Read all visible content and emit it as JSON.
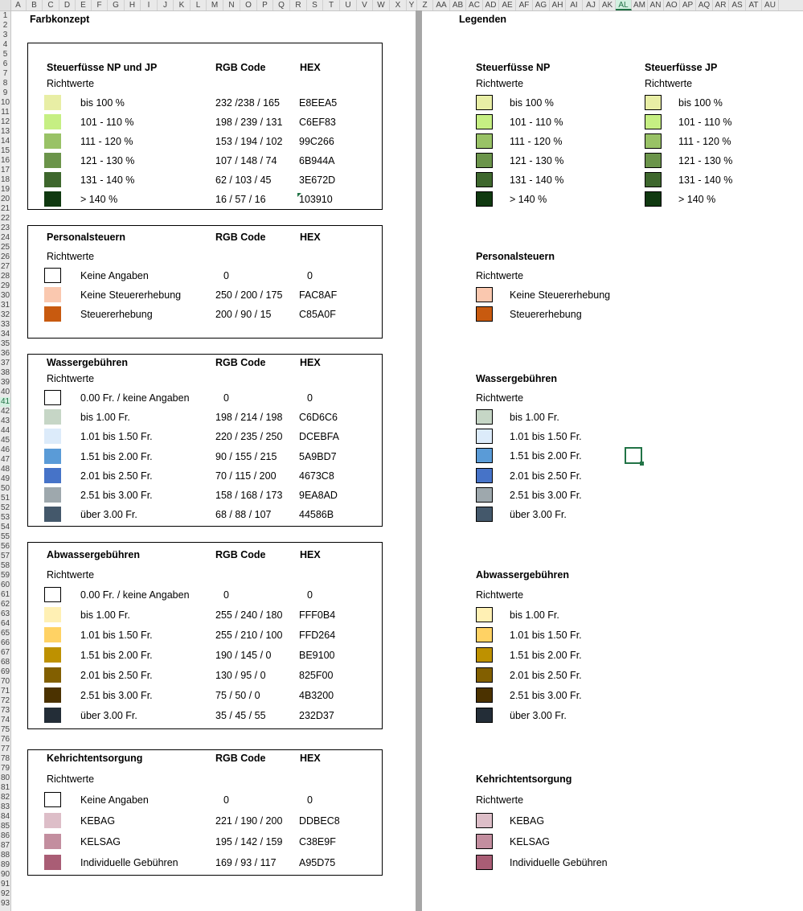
{
  "columns": [
    "A",
    "B",
    "C",
    "D",
    "E",
    "F",
    "G",
    "H",
    "I",
    "J",
    "K",
    "L",
    "M",
    "N",
    "O",
    "P",
    "Q",
    "R",
    "S",
    "T",
    "U",
    "V",
    "W",
    "X",
    "Y",
    "Z",
    "AA",
    "AB",
    "AC",
    "AD",
    "AE",
    "AF",
    "AG",
    "AH",
    "AI",
    "AJ",
    "AK",
    "AL",
    "AM",
    "AN",
    "AO",
    "AP",
    "AQ",
    "AR",
    "AS",
    "AT",
    "AU"
  ],
  "selected_column": "AL",
  "rows": [
    "1",
    "2",
    "3",
    "4",
    "5",
    "6",
    "7",
    "8",
    "9",
    "10",
    "11",
    "12",
    "13",
    "14",
    "15",
    "16",
    "17",
    "18",
    "19",
    "20",
    "21",
    "22",
    "23",
    "24",
    "25",
    "26",
    "27",
    "28",
    "29",
    "30",
    "31",
    "32",
    "33",
    "34",
    "35",
    "36",
    "37",
    "38",
    "39",
    "40",
    "41",
    "42",
    "43",
    "44",
    "45",
    "46",
    "47",
    "48",
    "49",
    "50",
    "51",
    "52",
    "53",
    "54",
    "55",
    "56",
    "57",
    "58",
    "59",
    "60",
    "61",
    "62",
    "63",
    "64",
    "65",
    "66",
    "67",
    "68",
    "69",
    "70",
    "71",
    "72",
    "73",
    "74",
    "75",
    "76",
    "77",
    "78",
    "79",
    "80",
    "81",
    "82",
    "83",
    "84",
    "85",
    "86",
    "87",
    "88",
    "89",
    "90",
    "91",
    "92",
    "93"
  ],
  "selected_row": "41",
  "farbkonzept_title": "Farbkonzept",
  "legenden_title": "Legenden",
  "rgb_header": "RGB Code",
  "hex_header": "HEX",
  "richtwerte": "Richtwerte",
  "farbkonzept": [
    {
      "title": "Steuerfüsse NP und JP",
      "items": [
        {
          "label": "bis 100 %",
          "rgb": "232 /238 / 165",
          "hex": "E8EEA5",
          "color": "#E8EEA5"
        },
        {
          "label": "101 - 110 %",
          "rgb": "198 / 239 / 131",
          "hex": "C6EF83",
          "color": "#C6EF83"
        },
        {
          "label": "111 - 120 %",
          "rgb": "153 / 194 / 102",
          "hex": "99C266",
          "color": "#99C266"
        },
        {
          "label": "121 - 130 %",
          "rgb": "107 / 148 / 74",
          "hex": "6B944A",
          "color": "#6B944A"
        },
        {
          "label": "131 - 140 %",
          "rgb": "62 / 103 / 45",
          "hex": "3E672D",
          "color": "#3E672D"
        },
        {
          "label": "> 140 %",
          "rgb": "16 / 57 / 16",
          "hex": "103910",
          "color": "#103910"
        }
      ]
    },
    {
      "title": "Personalsteuern",
      "items": [
        {
          "label": "Keine Angaben",
          "rgb": "0",
          "hex": "0",
          "color": "#FFFFFF"
        },
        {
          "label": "Keine Steuererhebung",
          "rgb": "250 / 200 / 175",
          "hex": "FAC8AF",
          "color": "#FAC8AF"
        },
        {
          "label": "Steuererhebung",
          "rgb": "200 / 90 / 15",
          "hex": "C85A0F",
          "color": "#C85A0F"
        }
      ]
    },
    {
      "title": "Wassergebühren",
      "items": [
        {
          "label": "0.00 Fr. / keine Angaben",
          "rgb": "0",
          "hex": "0",
          "color": "#FFFFFF"
        },
        {
          "label": "bis 1.00 Fr.",
          "rgb": "198 / 214 / 198",
          "hex": "C6D6C6",
          "color": "#C6D6C6"
        },
        {
          "label": "1.01 bis 1.50 Fr.",
          "rgb": "220 / 235 / 250",
          "hex": "DCEBFA",
          "color": "#DCEBFA"
        },
        {
          "label": "1.51 bis 2.00 Fr.",
          "rgb": "90 / 155 / 215",
          "hex": "5A9BD7",
          "color": "#5A9BD7"
        },
        {
          "label": "2.01 bis 2.50 Fr.",
          "rgb": "70 / 115 / 200",
          "hex": "4673C8",
          "color": "#4673C8"
        },
        {
          "label": "2.51 bis 3.00 Fr.",
          "rgb": "158 / 168 / 173",
          "hex": "9EA8AD",
          "color": "#9EA8AD"
        },
        {
          "label": "über 3.00 Fr.",
          "rgb": "68 / 88 / 107",
          "hex": "44586B",
          "color": "#44586B"
        }
      ]
    },
    {
      "title": "Abwassergebühren",
      "items": [
        {
          "label": "0.00 Fr. / keine Angaben",
          "rgb": "0",
          "hex": "0",
          "color": "#FFFFFF"
        },
        {
          "label": "bis 1.00 Fr.",
          "rgb": "255 / 240 / 180",
          "hex": "FFF0B4",
          "color": "#FFF0B4"
        },
        {
          "label": "1.01 bis 1.50 Fr.",
          "rgb": "255 / 210 / 100",
          "hex": "FFD264",
          "color": "#FFD264"
        },
        {
          "label": "1.51 bis 2.00 Fr.",
          "rgb": "190 / 145 / 0",
          "hex": "BE9100",
          "color": "#BE9100"
        },
        {
          "label": "2.01 bis 2.50 Fr.",
          "rgb": "130 / 95 / 0",
          "hex": "825F00",
          "color": "#825F00"
        },
        {
          "label": "2.51 bis 3.00 Fr.",
          "rgb": "75 / 50 / 0",
          "hex": "4B3200",
          "color": "#4B3200"
        },
        {
          "label": "über 3.00 Fr.",
          "rgb": "35 / 45 / 55",
          "hex": "232D37",
          "color": "#232D37"
        }
      ]
    },
    {
      "title": "Kehrichtentsorgung",
      "items": [
        {
          "label": "Keine Angaben",
          "rgb": "0",
          "hex": "0",
          "color": "#FFFFFF"
        },
        {
          "label": "KEBAG",
          "rgb": "221 / 190 / 200",
          "hex": "DDBEC8",
          "color": "#DDBEC8"
        },
        {
          "label": "KELSAG",
          "rgb": "195 / 142 / 159",
          "hex": "C38E9F",
          "color": "#C38E9F"
        },
        {
          "label": "Individuelle Gebühren",
          "rgb": "169 / 93 / 117",
          "hex": "A95D75",
          "color": "#A95D75"
        }
      ]
    }
  ],
  "legenden": [
    {
      "title": "Steuerfüsse NP",
      "items": [
        {
          "label": "bis 100 %",
          "color": "#E8EEA5"
        },
        {
          "label": "101 - 110 %",
          "color": "#C6EF83"
        },
        {
          "label": "111 - 120 %",
          "color": "#99C266"
        },
        {
          "label": "121 - 130 %",
          "color": "#6B944A"
        },
        {
          "label": "131 - 140 %",
          "color": "#3E672D"
        },
        {
          "label": "> 140 %",
          "color": "#103910"
        }
      ]
    },
    {
      "title": "Steuerfüsse JP",
      "items": [
        {
          "label": "bis 100 %",
          "color": "#E8EEA5"
        },
        {
          "label": "101 - 110 %",
          "color": "#C6EF83"
        },
        {
          "label": "111 - 120 %",
          "color": "#99C266"
        },
        {
          "label": "121 - 130 %",
          "color": "#6B944A"
        },
        {
          "label": "131 - 140 %",
          "color": "#3E672D"
        },
        {
          "label": "> 140 %",
          "color": "#103910"
        }
      ]
    },
    {
      "title": "Personalsteuern",
      "items": [
        {
          "label": "Keine Steuererhebung",
          "color": "#FAC8AF"
        },
        {
          "label": "Steuererhebung",
          "color": "#C85A0F"
        }
      ]
    },
    {
      "title": "Wassergebühren",
      "items": [
        {
          "label": "bis 1.00 Fr.",
          "color": "#C6D6C6"
        },
        {
          "label": "1.01 bis 1.50 Fr.",
          "color": "#DCEBFA"
        },
        {
          "label": "1.51 bis 2.00 Fr.",
          "color": "#5A9BD7"
        },
        {
          "label": "2.01 bis 2.50 Fr.",
          "color": "#4673C8"
        },
        {
          "label": "2.51 bis 3.00 Fr.",
          "color": "#9EA8AD"
        },
        {
          "label": "über 3.00 Fr.",
          "color": "#44586B"
        }
      ]
    },
    {
      "title": "Abwassergebühren",
      "items": [
        {
          "label": "bis 1.00 Fr.",
          "color": "#FFF0B4"
        },
        {
          "label": "1.01 bis 1.50 Fr.",
          "color": "#FFD264"
        },
        {
          "label": "1.51 bis 2.00 Fr.",
          "color": "#BE9100"
        },
        {
          "label": "2.01 bis 2.50 Fr.",
          "color": "#825F00"
        },
        {
          "label": "2.51 bis 3.00 Fr.",
          "color": "#4B3200"
        },
        {
          "label": "über 3.00 Fr.",
          "color": "#232D37"
        }
      ]
    },
    {
      "title": "Kehrichtentsorgung",
      "items": [
        {
          "label": "KEBAG",
          "color": "#DDBEC8"
        },
        {
          "label": "KELSAG",
          "color": "#C38E9F"
        },
        {
          "label": "Individuelle Gebühren",
          "color": "#A95D75"
        }
      ]
    }
  ]
}
